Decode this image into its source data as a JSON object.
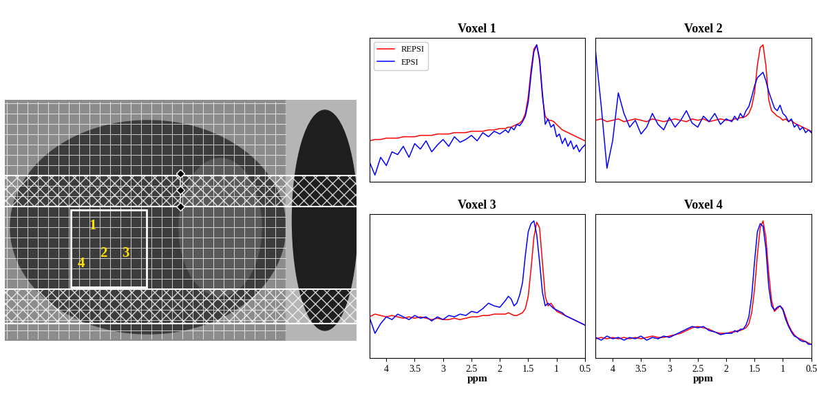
{
  "image": {
    "voxel_labels": [
      "1",
      "2",
      "3",
      "4"
    ]
  },
  "chart_data": [
    {
      "type": "line",
      "title": "Voxel 1",
      "legend": "upper left",
      "tick_labels": false,
      "x": [
        4.3,
        4.2,
        4.1,
        4.0,
        3.9,
        3.8,
        3.7,
        3.6,
        3.5,
        3.4,
        3.3,
        3.2,
        3.1,
        3.0,
        2.9,
        2.8,
        2.7,
        2.6,
        2.5,
        2.4,
        2.3,
        2.2,
        2.1,
        2.0,
        1.9,
        1.85,
        1.8,
        1.75,
        1.7,
        1.65,
        1.6,
        1.55,
        1.5,
        1.45,
        1.4,
        1.35,
        1.3,
        1.25,
        1.2,
        1.15,
        1.1,
        1.05,
        1.0,
        0.95,
        0.9,
        0.85,
        0.8,
        0.75,
        0.7,
        0.65,
        0.6,
        0.55,
        0.5
      ],
      "xlim": [
        4.3,
        0.5
      ],
      "ylim": [
        0,
        1.05
      ],
      "series": [
        {
          "name": "REPSI",
          "color": "#ff0000",
          "values": [
            0.3,
            0.31,
            0.31,
            0.32,
            0.32,
            0.32,
            0.33,
            0.33,
            0.33,
            0.34,
            0.34,
            0.34,
            0.35,
            0.35,
            0.35,
            0.36,
            0.36,
            0.36,
            0.37,
            0.37,
            0.37,
            0.38,
            0.38,
            0.39,
            0.39,
            0.4,
            0.4,
            0.41,
            0.42,
            0.43,
            0.45,
            0.5,
            0.62,
            0.82,
            0.97,
            1.0,
            0.88,
            0.62,
            0.48,
            0.45,
            0.45,
            0.44,
            0.42,
            0.4,
            0.38,
            0.37,
            0.36,
            0.35,
            0.34,
            0.33,
            0.32,
            0.31,
            0.3
          ]
        },
        {
          "name": "EPSI",
          "color": "#0000ff",
          "values": [
            0.15,
            0.05,
            0.18,
            0.12,
            0.22,
            0.2,
            0.26,
            0.18,
            0.28,
            0.24,
            0.3,
            0.22,
            0.27,
            0.31,
            0.26,
            0.33,
            0.29,
            0.31,
            0.34,
            0.3,
            0.36,
            0.33,
            0.37,
            0.35,
            0.38,
            0.36,
            0.4,
            0.38,
            0.42,
            0.41,
            0.44,
            0.48,
            0.58,
            0.78,
            0.95,
            1.0,
            0.9,
            0.65,
            0.42,
            0.46,
            0.4,
            0.42,
            0.33,
            0.35,
            0.28,
            0.32,
            0.26,
            0.3,
            0.24,
            0.27,
            0.22,
            0.25,
            0.27
          ]
        }
      ]
    },
    {
      "type": "line",
      "title": "Voxel 2",
      "tick_labels": false,
      "x": [
        4.3,
        4.2,
        4.1,
        4.0,
        3.9,
        3.8,
        3.7,
        3.6,
        3.5,
        3.4,
        3.3,
        3.2,
        3.1,
        3.0,
        2.9,
        2.8,
        2.7,
        2.6,
        2.5,
        2.4,
        2.3,
        2.2,
        2.1,
        2.0,
        1.9,
        1.85,
        1.8,
        1.75,
        1.7,
        1.65,
        1.6,
        1.55,
        1.5,
        1.45,
        1.4,
        1.35,
        1.3,
        1.25,
        1.2,
        1.15,
        1.1,
        1.05,
        1.0,
        0.95,
        0.9,
        0.85,
        0.8,
        0.75,
        0.7,
        0.65,
        0.6,
        0.55,
        0.5
      ],
      "xlim": [
        4.3,
        0.5
      ],
      "ylim": [
        0,
        1.05
      ],
      "series": [
        {
          "name": "REPSI",
          "color": "#ff0000",
          "values": [
            0.45,
            0.46,
            0.44,
            0.45,
            0.46,
            0.44,
            0.45,
            0.46,
            0.45,
            0.44,
            0.46,
            0.45,
            0.44,
            0.45,
            0.46,
            0.45,
            0.44,
            0.46,
            0.45,
            0.46,
            0.44,
            0.45,
            0.46,
            0.45,
            0.45,
            0.46,
            0.46,
            0.47,
            0.47,
            0.48,
            0.5,
            0.55,
            0.65,
            0.85,
            0.98,
            1.0,
            0.85,
            0.6,
            0.52,
            0.5,
            0.48,
            0.47,
            0.45,
            0.46,
            0.44,
            0.45,
            0.43,
            0.42,
            0.41,
            0.4,
            0.39,
            0.38,
            0.37
          ]
        },
        {
          "name": "EPSI",
          "color": "#0000ff",
          "values": [
            0.95,
            0.55,
            0.1,
            0.3,
            0.65,
            0.5,
            0.4,
            0.45,
            0.35,
            0.4,
            0.5,
            0.42,
            0.38,
            0.47,
            0.4,
            0.45,
            0.52,
            0.43,
            0.4,
            0.48,
            0.44,
            0.5,
            0.42,
            0.46,
            0.44,
            0.48,
            0.45,
            0.5,
            0.47,
            0.52,
            0.55,
            0.62,
            0.7,
            0.76,
            0.78,
            0.8,
            0.74,
            0.66,
            0.6,
            0.54,
            0.52,
            0.56,
            0.5,
            0.48,
            0.44,
            0.46,
            0.4,
            0.42,
            0.38,
            0.4,
            0.36,
            0.38,
            0.36
          ]
        }
      ]
    },
    {
      "type": "line",
      "title": "Voxel 3",
      "tick_labels": "x",
      "x_label": "ppm",
      "x": [
        4.3,
        4.2,
        4.1,
        4.0,
        3.9,
        3.8,
        3.7,
        3.6,
        3.5,
        3.4,
        3.3,
        3.2,
        3.1,
        3.0,
        2.9,
        2.8,
        2.7,
        2.6,
        2.5,
        2.4,
        2.3,
        2.2,
        2.1,
        2.0,
        1.9,
        1.85,
        1.8,
        1.75,
        1.7,
        1.65,
        1.6,
        1.55,
        1.5,
        1.45,
        1.4,
        1.35,
        1.3,
        1.25,
        1.2,
        1.15,
        1.1,
        1.05,
        1.0,
        0.95,
        0.9,
        0.85,
        0.8,
        0.75,
        0.7,
        0.65,
        0.6,
        0.55,
        0.5
      ],
      "xlim": [
        4.3,
        0.5
      ],
      "xticks": [
        4,
        3.5,
        3,
        2.5,
        2,
        1.5,
        1,
        0.5
      ],
      "ylim": [
        0,
        1.05
      ],
      "series": [
        {
          "name": "REPSI",
          "color": "#ff0000",
          "values": [
            0.3,
            0.32,
            0.31,
            0.3,
            0.31,
            0.3,
            0.29,
            0.3,
            0.29,
            0.3,
            0.29,
            0.28,
            0.29,
            0.28,
            0.28,
            0.29,
            0.28,
            0.29,
            0.3,
            0.3,
            0.31,
            0.31,
            0.32,
            0.32,
            0.32,
            0.33,
            0.32,
            0.31,
            0.31,
            0.32,
            0.33,
            0.36,
            0.45,
            0.65,
            0.88,
            0.99,
            0.95,
            0.7,
            0.45,
            0.38,
            0.4,
            0.37,
            0.34,
            0.33,
            0.32,
            0.31,
            0.3,
            0.29,
            0.28,
            0.27,
            0.26,
            0.25,
            0.24
          ]
        },
        {
          "name": "EPSI",
          "color": "#0000ff",
          "values": [
            0.3,
            0.18,
            0.25,
            0.3,
            0.28,
            0.32,
            0.3,
            0.28,
            0.31,
            0.29,
            0.3,
            0.27,
            0.3,
            0.28,
            0.31,
            0.3,
            0.32,
            0.31,
            0.34,
            0.33,
            0.36,
            0.4,
            0.38,
            0.37,
            0.42,
            0.45,
            0.43,
            0.38,
            0.4,
            0.46,
            0.55,
            0.75,
            0.92,
            0.98,
            1.0,
            0.9,
            0.7,
            0.48,
            0.38,
            0.4,
            0.38,
            0.36,
            0.35,
            0.34,
            0.33,
            0.31,
            0.3,
            0.29,
            0.28,
            0.27,
            0.26,
            0.25,
            0.24
          ]
        }
      ]
    },
    {
      "type": "line",
      "title": "Voxel 4",
      "tick_labels": "x",
      "x_label": "ppm",
      "x": [
        4.3,
        4.2,
        4.1,
        4.0,
        3.9,
        3.8,
        3.7,
        3.6,
        3.5,
        3.4,
        3.3,
        3.2,
        3.1,
        3.0,
        2.9,
        2.8,
        2.7,
        2.6,
        2.5,
        2.4,
        2.3,
        2.2,
        2.1,
        2.0,
        1.9,
        1.85,
        1.8,
        1.75,
        1.7,
        1.65,
        1.6,
        1.55,
        1.5,
        1.45,
        1.4,
        1.35,
        1.3,
        1.25,
        1.2,
        1.15,
        1.1,
        1.05,
        1.0,
        0.95,
        0.9,
        0.85,
        0.8,
        0.75,
        0.7,
        0.65,
        0.6,
        0.55,
        0.5
      ],
      "xlim": [
        4.3,
        0.5
      ],
      "xticks": [
        4,
        3.5,
        3,
        2.5,
        2,
        1.5,
        1,
        0.5
      ],
      "ylim": [
        0,
        1.05
      ],
      "series": [
        {
          "name": "REPSI",
          "color": "#ff0000",
          "values": [
            0.14,
            0.15,
            0.14,
            0.15,
            0.14,
            0.15,
            0.14,
            0.15,
            0.14,
            0.15,
            0.16,
            0.15,
            0.15,
            0.16,
            0.17,
            0.18,
            0.2,
            0.22,
            0.23,
            0.22,
            0.21,
            0.19,
            0.18,
            0.18,
            0.19,
            0.19,
            0.2,
            0.2,
            0.21,
            0.22,
            0.25,
            0.33,
            0.5,
            0.75,
            0.95,
            1.0,
            0.88,
            0.62,
            0.42,
            0.34,
            0.36,
            0.38,
            0.36,
            0.3,
            0.24,
            0.2,
            0.17,
            0.15,
            0.14,
            0.13,
            0.12,
            0.11,
            0.1
          ]
        },
        {
          "name": "EPSI",
          "color": "#0000ff",
          "values": [
            0.15,
            0.13,
            0.16,
            0.14,
            0.15,
            0.13,
            0.15,
            0.14,
            0.16,
            0.13,
            0.15,
            0.14,
            0.16,
            0.15,
            0.17,
            0.19,
            0.21,
            0.23,
            0.22,
            0.23,
            0.2,
            0.19,
            0.17,
            0.18,
            0.18,
            0.2,
            0.19,
            0.21,
            0.21,
            0.24,
            0.3,
            0.45,
            0.7,
            0.92,
            0.98,
            0.96,
            0.8,
            0.52,
            0.38,
            0.35,
            0.37,
            0.38,
            0.35,
            0.28,
            0.23,
            0.19,
            0.16,
            0.15,
            0.13,
            0.12,
            0.12,
            0.1,
            0.1
          ]
        }
      ]
    }
  ]
}
